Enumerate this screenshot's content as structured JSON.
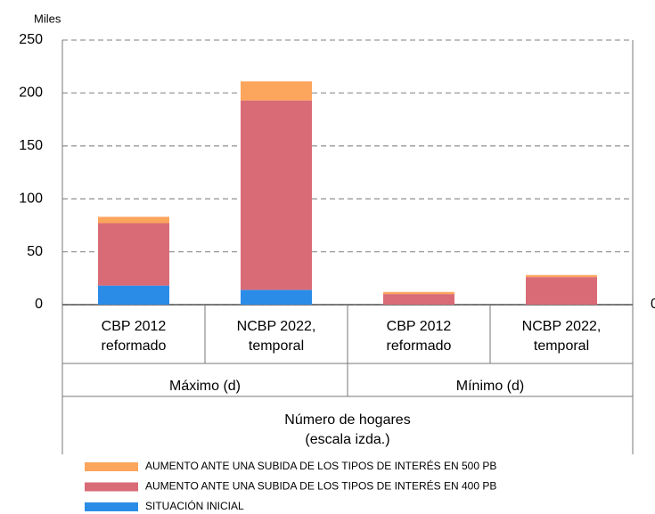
{
  "chart_data": {
    "type": "bar",
    "stacked": true,
    "y_label": "Miles",
    "categories": [
      "CBP 2012\nreformado",
      "NCBP 2022,\ntemporal",
      "CBP 2012\nreformado",
      "NCBP 2022,\ntemporal"
    ],
    "groups": [
      "Máximo (d)",
      "Mínimo (d)"
    ],
    "x_label": "Número de hogares\n(escala izda.)",
    "series": [
      {
        "name": "SITUACIÓN INICIAL",
        "color": "#2b8ce8",
        "values": [
          18,
          14,
          0,
          0
        ]
      },
      {
        "name": "AUMENTO ANTE UNA SUBIDA DE LOS TIPOS DE INTERÉS EN 400 PB",
        "color": "#d96b77",
        "values": [
          59,
          179,
          10,
          26
        ]
      },
      {
        "name": "AUMENTO ANTE UNA SUBIDA DE LOS TIPOS DE INTERÉS EN 500 PB",
        "color": "#fca55d",
        "values": [
          6,
          18,
          2,
          2
        ]
      }
    ],
    "ylim": [
      0,
      250
    ],
    "yticks": [
      0,
      50,
      100,
      150,
      200,
      250
    ],
    "y2ticks": [
      0
    ],
    "grid": true
  }
}
